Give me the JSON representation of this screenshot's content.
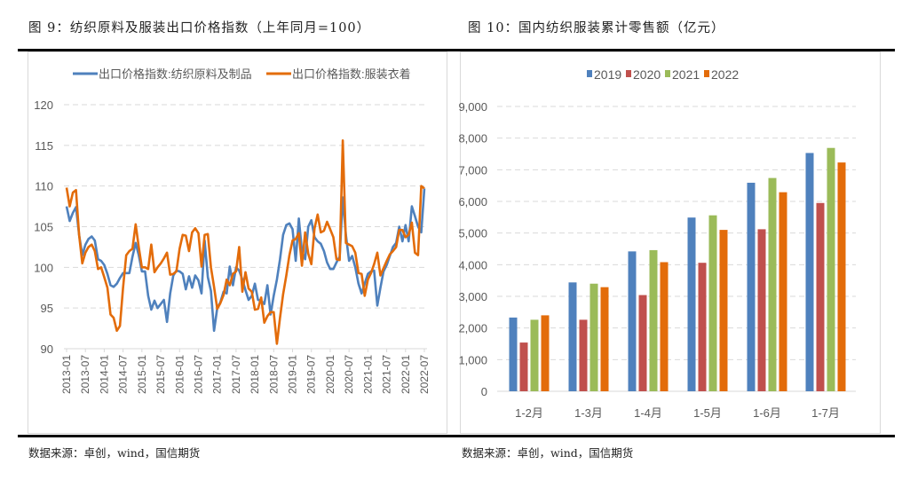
{
  "figures": {
    "left_title": "图 9：纺织原料及服装出口价格指数（上年同月=100）",
    "right_title": "图 10：国内纺织服装累计零售额（亿元）",
    "left_source": "数据来源：卓创，wind，国信期货",
    "right_source": "数据来源：卓创，wind，国信期货"
  },
  "chart_data": [
    {
      "type": "line",
      "x_start": "2013-01",
      "x_end": "2022-07",
      "x_tick_labels": [
        "2013-01",
        "2013-07",
        "2014-01",
        "2014-07",
        "2015-01",
        "2015-07",
        "2016-01",
        "2016-07",
        "2017-01",
        "2017-07",
        "2018-01",
        "2018-07",
        "2019-01",
        "2019-07",
        "2020-01",
        "2020-07",
        "2021-01",
        "2021-07",
        "2022-01",
        "2022-07"
      ],
      "y_ticks": [
        "90",
        "95",
        "100",
        "105",
        "110",
        "115",
        "120"
      ],
      "ylim": [
        90,
        120
      ],
      "grid": true,
      "legend": "top",
      "series": [
        {
          "name": "出口价格指数:纺织原料及制品",
          "color": "#4f81bd",
          "values": [
            107.5,
            105.7,
            106.7,
            107.4,
            104,
            101.5,
            102.8,
            103.5,
            103.8,
            103.3,
            101,
            100.8,
            100.3,
            99.2,
            97.8,
            97.6,
            98,
            98.7,
            99.3,
            99.3,
            99.3,
            101.3,
            103,
            101.5,
            99.5,
            99.5,
            96.5,
            94.8,
            95.9,
            95,
            95.5,
            96,
            93.3,
            96.8,
            99,
            99.6,
            99.5,
            99.2,
            97.3,
            98.9,
            97.5,
            99,
            98.4,
            96.8,
            103.3,
            98.8,
            97.1,
            92.2,
            95,
            95.7,
            97,
            96.8,
            100.1,
            97.8,
            100,
            99.6,
            98.5,
            97.2,
            96,
            96.5,
            98,
            96,
            95.9,
            95.5,
            97.8,
            94.2,
            96.5,
            98.5,
            101,
            104,
            105.2,
            105.4,
            104.7,
            100.8,
            106,
            102,
            101,
            105,
            105.8,
            103.7,
            103.2,
            102.9,
            102,
            100.6,
            99.8,
            99.8,
            100.6,
            101.3,
            108.6,
            104,
            100.8,
            101.4,
            100,
            98,
            96.8,
            98,
            99.2,
            99.5,
            99.6,
            95.3,
            97.5,
            99.5,
            100.3,
            101.4,
            102.5,
            103,
            105,
            103.2,
            105.2,
            103.2,
            107.5,
            106.3,
            105,
            104.3,
            109.7
          ]
        },
        {
          "name": "出口价格指数:服装衣着",
          "color": "#e36c0a",
          "values": [
            109.8,
            107.5,
            109.2,
            109.5,
            104,
            100.5,
            101.8,
            102.5,
            102.8,
            102,
            99.8,
            100,
            98.8,
            97.5,
            94.2,
            93.8,
            92.2,
            92.8,
            97.5,
            101.5,
            102,
            102.3,
            105.3,
            102.5,
            100,
            100,
            99.8,
            102.8,
            99.4,
            100,
            100.5,
            101.1,
            101.8,
            99.1,
            99.2,
            99.5,
            102.3,
            104,
            103.9,
            102,
            104.3,
            104.8,
            104.2,
            100.1,
            104,
            104.1,
            100,
            97.6,
            94.9,
            95.6,
            96.6,
            98.5,
            97.8,
            99.2,
            99.5,
            102.5,
            97,
            99.4,
            97.4,
            97,
            94.8,
            94.9,
            96.3,
            93.2,
            94,
            94.5,
            94.5,
            90.6,
            93.8,
            96.7,
            99,
            101.5,
            103.3,
            103.5,
            104.2,
            100.2,
            104.3,
            101.7,
            100.4,
            104.8,
            106.5,
            104.3,
            104.5,
            105.6,
            104.7,
            103.7,
            101,
            100.9,
            115.6,
            103,
            102.8,
            102.6,
            101.8,
            99.3,
            99.2,
            96.5,
            98.5,
            99.3,
            100.4,
            101.8,
            99,
            99.9,
            100.8,
            101.6,
            102,
            102.5,
            104.6,
            104.6,
            103.7,
            104,
            105.5,
            101.8,
            101.5,
            110,
            109.7
          ]
        }
      ]
    },
    {
      "type": "bar",
      "categories": [
        "1-2月",
        "1-3月",
        "1-4月",
        "1-5月",
        "1-6月",
        "1-7月"
      ],
      "y_ticks": [
        "0",
        "1,000",
        "2,000",
        "3,000",
        "4,000",
        "5,000",
        "6,000",
        "7,000",
        "8,000",
        "9,000"
      ],
      "ylim": [
        0,
        9000
      ],
      "grid": true,
      "legend": "top",
      "series": [
        {
          "name": "2019",
          "color": "#4f81bd",
          "values": [
            2330,
            3440,
            4420,
            5490,
            6590,
            7530
          ]
        },
        {
          "name": "2020",
          "color": "#c0504d",
          "values": [
            1540,
            2260,
            3040,
            4060,
            5120,
            5950
          ]
        },
        {
          "name": "2021",
          "color": "#9bbb59",
          "values": [
            2260,
            3400,
            4460,
            5560,
            6740,
            7690
          ]
        },
        {
          "name": "2022",
          "color": "#e36c0a",
          "values": [
            2400,
            3290,
            4080,
            5100,
            6290,
            7230
          ]
        }
      ]
    }
  ]
}
